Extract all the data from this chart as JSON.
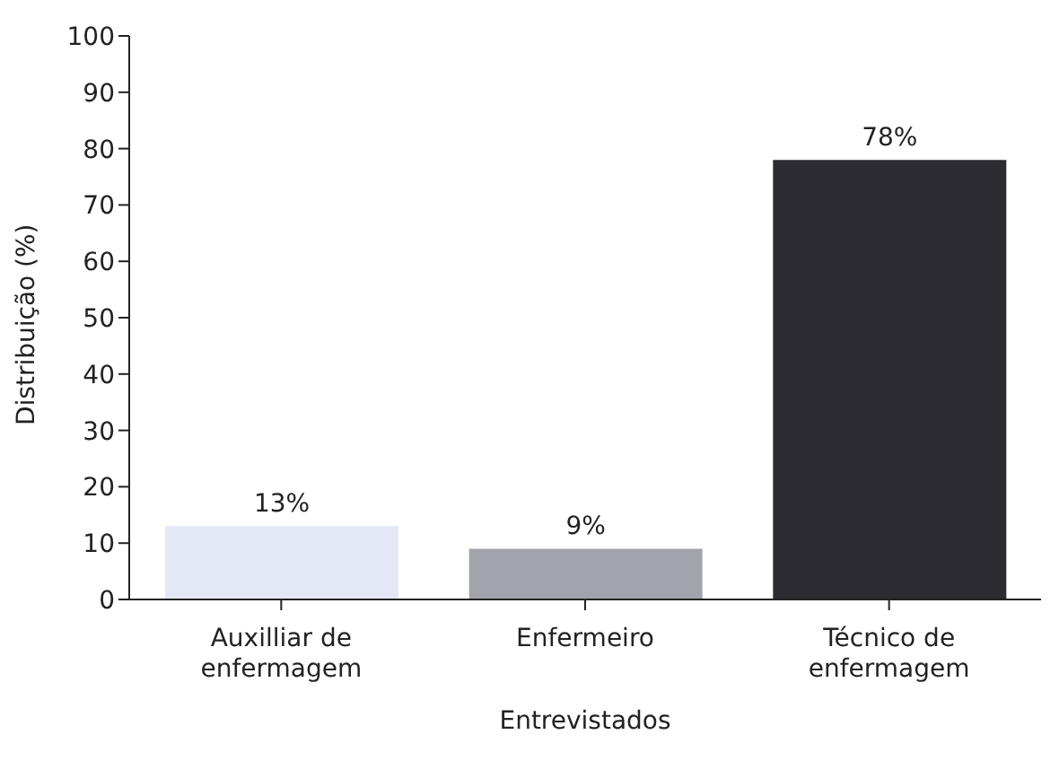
{
  "chart_data": {
    "type": "bar",
    "xlabel": "Entrevistados",
    "ylabel": "Distribuição (%)",
    "categories": [
      "Auxilliar de enfermagem",
      "Enfermeiro",
      "Técnico de enfermagem"
    ],
    "values": [
      13,
      9,
      78
    ],
    "colors": [
      "#e3e8f4",
      "#a3a3ab",
      "#2b2b31"
    ],
    "value_labels": [
      "13%",
      "9%",
      "78%"
    ],
    "ylim": [
      0,
      100
    ],
    "yticks": [
      0,
      10,
      20,
      30,
      40,
      50,
      60,
      70,
      80,
      90,
      100
    ],
    "grid": false,
    "legend": false
  }
}
